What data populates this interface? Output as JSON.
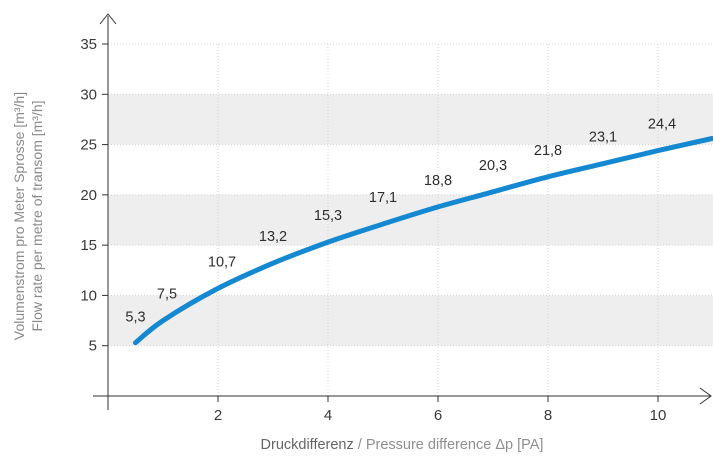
{
  "chart_data": {
    "type": "line",
    "x": [
      0.5,
      1,
      2,
      3,
      4,
      5,
      6,
      7,
      8,
      9,
      10
    ],
    "series": [
      {
        "values": [
          5.3,
          7.5,
          10.7,
          13.2,
          15.3,
          17.1,
          18.8,
          20.3,
          21.8,
          23.1,
          24.4
        ]
      }
    ],
    "data_labels": [
      "5,3",
      "7,5",
      "10,7",
      "13,2",
      "15,3",
      "17,1",
      "18,8",
      "20,3",
      "21,8",
      "23,1",
      "24,4"
    ],
    "xlabel_de": "Druckdifferenz",
    "xlabel_sep": " / ",
    "xlabel_en": "Pressure difference Δp [PA]",
    "ylabel_line1": "Volumenstrom pro Meter Sprosse [m³/h]",
    "ylabel_line2": "Flow rate per metre of transom [m³/h]",
    "x_ticks": [
      2,
      4,
      6,
      8,
      10
    ],
    "y_ticks": [
      5,
      10,
      15,
      20,
      25,
      30,
      35
    ],
    "xlim": [
      0,
      11
    ],
    "ylim": [
      0,
      35
    ],
    "grid": true,
    "colors": {
      "line": "#1488d0",
      "band": "#eeeeee",
      "grid": "#d4d4d4",
      "axis": "#333333"
    }
  }
}
